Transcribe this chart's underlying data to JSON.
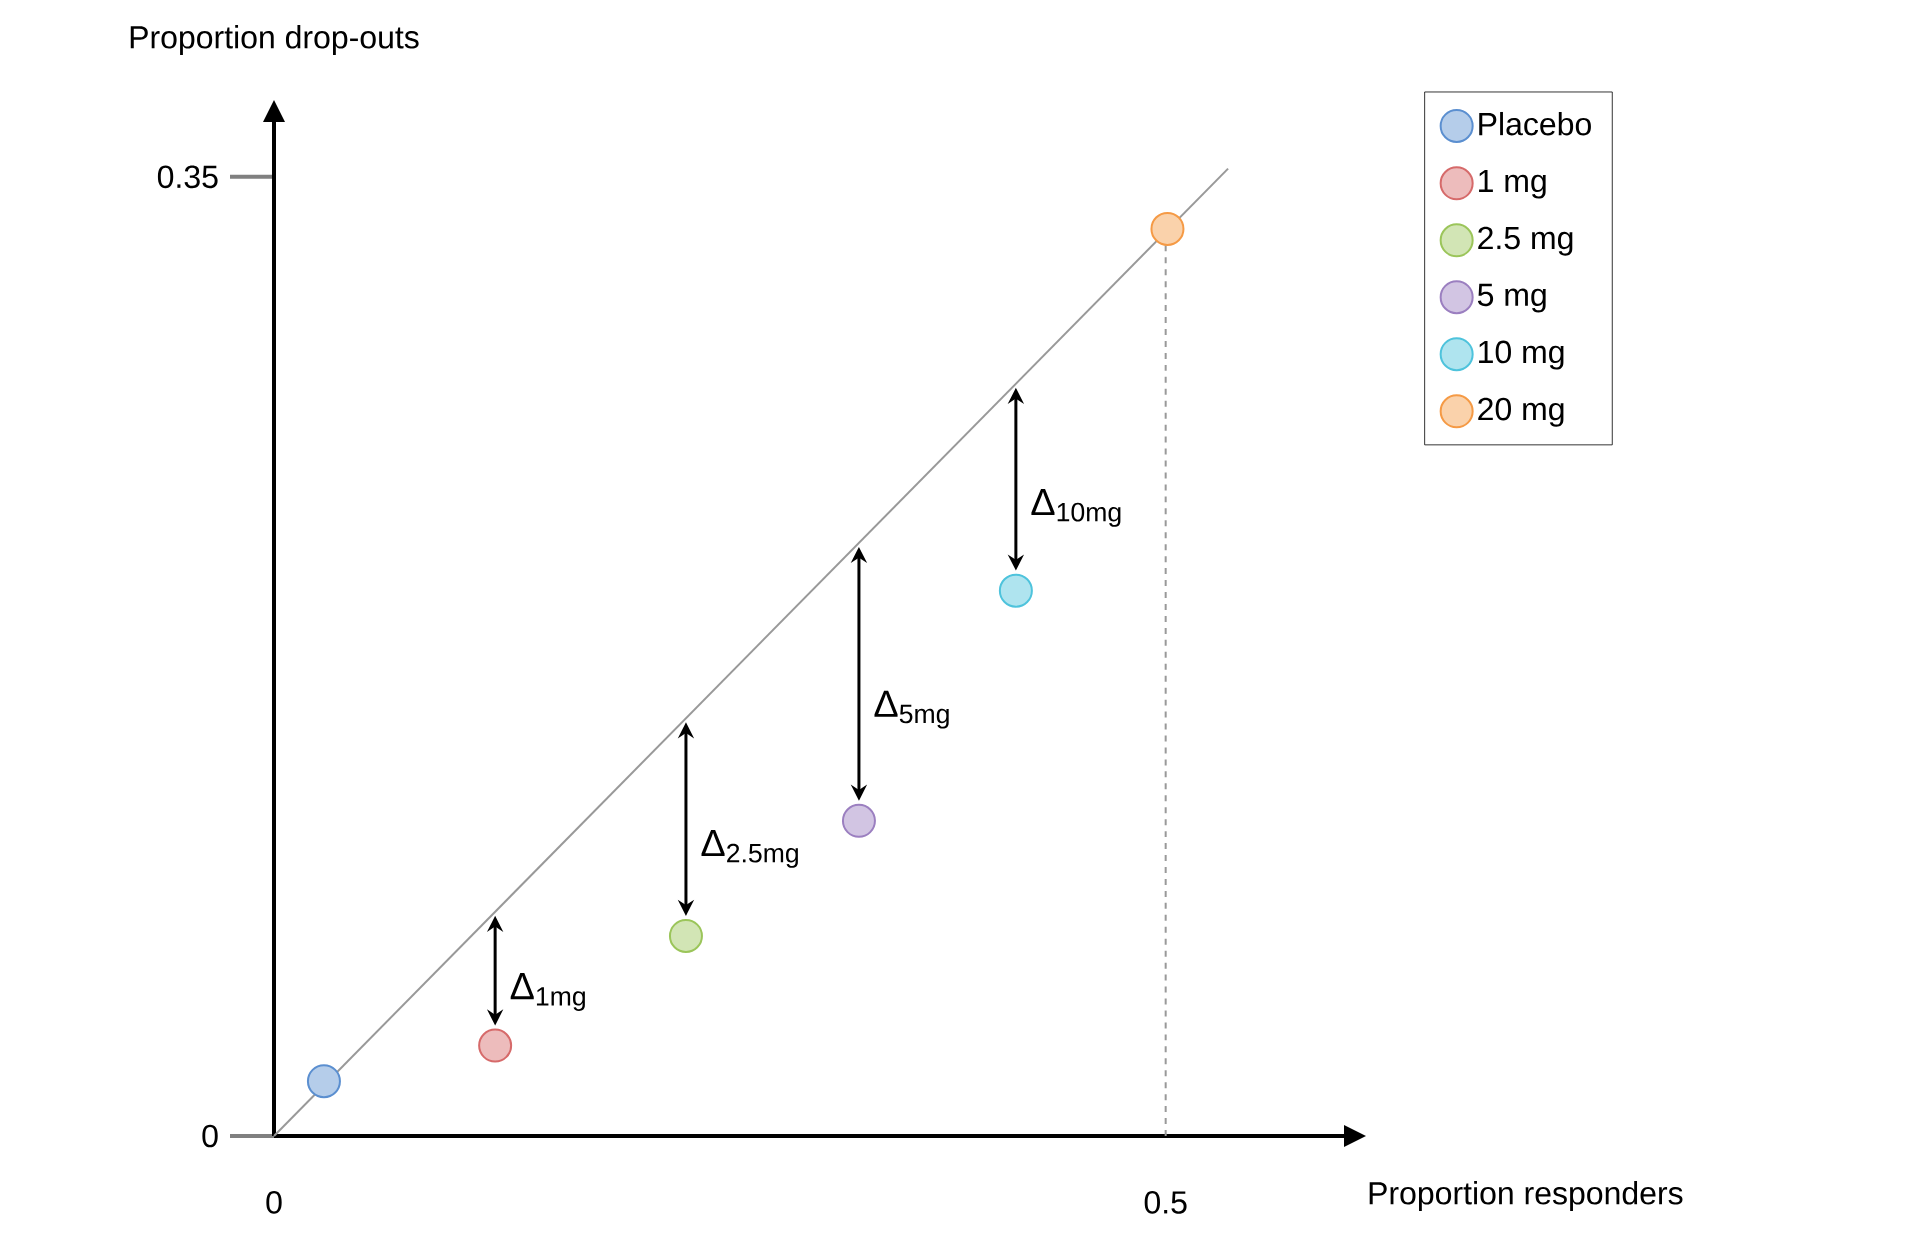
{
  "chart_data": {
    "type": "scatter",
    "xlabel": "Proportion responders",
    "ylabel": "Proportion drop-outs",
    "xlim": [
      0,
      0.6
    ],
    "ylim": [
      0,
      0.37
    ],
    "xticks": [
      0,
      0.5
    ],
    "yticks": [
      0,
      0.35
    ],
    "legend": "right",
    "series": [
      {
        "name": "Placebo",
        "marker": "circle",
        "color": "#5b8fd0",
        "x": [
          0.028
        ],
        "values": [
          0.02
        ]
      },
      {
        "name": "1 mg",
        "marker": "circle",
        "color": "#d66a6a",
        "x": [
          0.124
        ],
        "values": [
          0.033
        ]
      },
      {
        "name": "2.5 mg",
        "marker": "circle",
        "color": "#9bc55a",
        "x": [
          0.231
        ],
        "values": [
          0.073
        ]
      },
      {
        "name": "5 mg",
        "marker": "circle",
        "color": "#9b7fc0",
        "x": [
          0.328
        ],
        "values": [
          0.115
        ]
      },
      {
        "name": "10 mg",
        "marker": "circle",
        "color": "#4ec3dc",
        "x": [
          0.416
        ],
        "values": [
          0.199
        ]
      },
      {
        "name": "20 mg",
        "marker": "circle",
        "color": "#f59a45",
        "x": [
          0.501
        ],
        "values": [
          0.331
        ]
      },
      {
        "type": "line",
        "marker": "none",
        "color": "#999999",
        "x": [
          0,
          0.535
        ],
        "values": [
          0,
          0.353
        ]
      }
    ],
    "ref_lines": [
      {
        "axis": "x",
        "value": 0.5,
        "line_style": "dashed",
        "color": "#999999"
      }
    ],
    "annotations": [
      {
        "text": "Δ$_{1mg}$",
        "x": 0.124,
        "y": 0.033
      },
      {
        "text": "Δ$_{2.5mg}$",
        "x": 0.231,
        "y": 0.073
      },
      {
        "text": "Δ$_{5mg}$",
        "x": 0.328,
        "y": 0.115
      },
      {
        "text": "Δ$_{10mg}$",
        "x": 0.416,
        "y": 0.199
      }
    ]
  }
}
